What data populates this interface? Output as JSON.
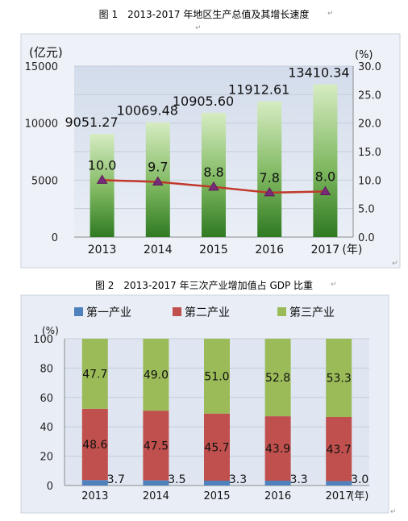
{
  "figure1": {
    "caption": "图 1　2013-2017 年地区生产总值及其增长速度",
    "chart_data": {
      "type": "bar+line",
      "categories": [
        "2013",
        "2014",
        "2015",
        "2016",
        "2017"
      ],
      "x_unit": "(年)",
      "series": [
        {
          "name": "",
          "type": "bar",
          "axis": "left",
          "values": [
            9051.27,
            10069.48,
            10905.6,
            11912.61,
            13410.34
          ],
          "value_labels": [
            "9051.27",
            "10069.48",
            "10905.60",
            "11912.61",
            "13410.34"
          ]
        },
        {
          "name": "",
          "type": "line",
          "axis": "right",
          "values": [
            10.0,
            9.7,
            8.8,
            7.8,
            8.0
          ],
          "value_labels": [
            "10.0",
            "9.7",
            "8.8",
            "7.8",
            "8.0"
          ]
        }
      ],
      "left_axis": {
        "unit": "(亿元)",
        "ylim": [
          0,
          15000
        ],
        "ticks": [
          "0",
          "5000",
          "10000",
          "15000"
        ]
      },
      "right_axis": {
        "unit": "(%)",
        "ylim": [
          0,
          30
        ],
        "ticks": [
          "0.0",
          "5.0",
          "10.0",
          "15.0",
          "20.0",
          "25.0",
          "30.0"
        ]
      },
      "grid": true,
      "colors": {
        "bar_top": "#d6ecc2",
        "bar_bottom": "#2f7a22",
        "line": "#c0392b",
        "marker": "#7a2b78",
        "plot_bg": "#dfe6f2"
      }
    }
  },
  "figure2": {
    "caption": "图 2　2013-2017 年三次产业增加值占 GDP 比重",
    "chart_data": {
      "type": "stacked-bar",
      "categories": [
        "2013",
        "2014",
        "2015",
        "2016",
        "2017"
      ],
      "x_unit": "(年)",
      "y_unit": "(%)",
      "ylim": [
        0,
        100
      ],
      "ticks": [
        "0",
        "20",
        "40",
        "60",
        "80",
        "100"
      ],
      "legend_position": "top",
      "series": [
        {
          "name": "第一产业",
          "values": [
            3.7,
            3.5,
            3.3,
            3.3,
            3.0
          ],
          "labels": [
            "3.7",
            "3.5",
            "3.3",
            "3.3",
            "3.0"
          ],
          "color": "#4f81bd"
        },
        {
          "name": "第二产业",
          "values": [
            48.6,
            47.5,
            45.7,
            43.9,
            43.7
          ],
          "labels": [
            "48.6",
            "47.5",
            "45.7",
            "43.9",
            "43.7"
          ],
          "color": "#c0504d"
        },
        {
          "name": "第三产业",
          "values": [
            47.7,
            49.0,
            51.0,
            52.8,
            53.3
          ],
          "labels": [
            "47.7",
            "49.0",
            "51.0",
            "52.8",
            "53.3"
          ],
          "color": "#9bbb59"
        }
      ],
      "colors": {
        "plot_bg": "#dfe6f2"
      }
    }
  }
}
